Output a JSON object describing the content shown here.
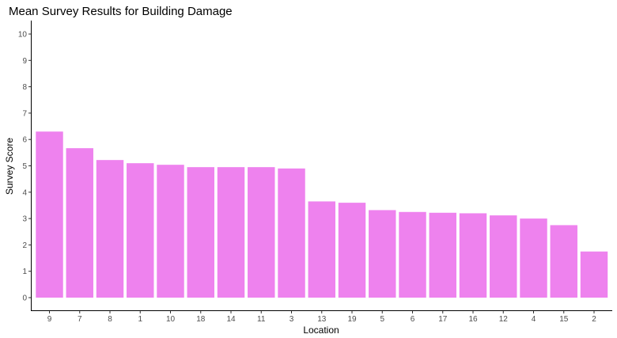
{
  "chart_data": {
    "type": "bar",
    "title": "Mean Survey Results for Building Damage",
    "xlabel": "Location",
    "ylabel": "Survey Score",
    "categories": [
      "9",
      "7",
      "8",
      "1",
      "10",
      "18",
      "14",
      "11",
      "3",
      "13",
      "19",
      "5",
      "6",
      "17",
      "16",
      "12",
      "4",
      "15",
      "2"
    ],
    "values": [
      6.3,
      5.67,
      5.22,
      5.1,
      5.04,
      4.95,
      4.95,
      4.95,
      4.9,
      3.65,
      3.6,
      3.32,
      3.25,
      3.22,
      3.2,
      3.12,
      3.0,
      2.75,
      1.75
    ],
    "ylim": [
      0,
      10
    ],
    "yticks": [
      0,
      1,
      2,
      3,
      4,
      5,
      6,
      7,
      8,
      9,
      10
    ],
    "grid": false,
    "legend": "none",
    "bar_color": "#EE82EE"
  }
}
